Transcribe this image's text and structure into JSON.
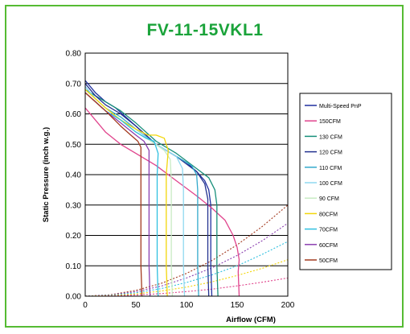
{
  "chart_data": {
    "type": "line",
    "title": "FV-11-15VKL1",
    "xlabel": "Airflow (CFM)",
    "ylabel": "Static Pressure (inch w.g.)",
    "xlim": [
      0,
      200
    ],
    "ylim": [
      0,
      0.8
    ],
    "x_ticks": [
      "0",
      "50",
      "100",
      "150",
      "200"
    ],
    "y_ticks": [
      "0.00",
      "0.10",
      "0.20",
      "0.30",
      "0.40",
      "0.50",
      "0.60",
      "0.70",
      "0.80"
    ],
    "grid": "horizontal",
    "legend_position": "right",
    "series": [
      {
        "name": "Multi-Speed PnP",
        "color": "#1f2f9f",
        "style": "solid",
        "points": [
          [
            0,
            0.71
          ],
          [
            10,
            0.67
          ],
          [
            20,
            0.64
          ],
          [
            30,
            0.62
          ],
          [
            40,
            0.59
          ],
          [
            50,
            0.56
          ],
          [
            60,
            0.53
          ],
          [
            70,
            0.5
          ],
          [
            80,
            0.48
          ],
          [
            90,
            0.46
          ],
          [
            100,
            0.44
          ],
          [
            110,
            0.41
          ],
          [
            118,
            0.38
          ],
          [
            122,
            0.35
          ],
          [
            124,
            0.3
          ],
          [
            124,
            0.2
          ],
          [
            124,
            0.1
          ],
          [
            125,
            0.0
          ]
        ]
      },
      {
        "name": "150CFM",
        "color": "#e0438c",
        "style": "solid",
        "points": [
          [
            0,
            0.62
          ],
          [
            10,
            0.58
          ],
          [
            20,
            0.54
          ],
          [
            35,
            0.5
          ],
          [
            50,
            0.47
          ],
          [
            70,
            0.43
          ],
          [
            90,
            0.38
          ],
          [
            110,
            0.33
          ],
          [
            125,
            0.29
          ],
          [
            138,
            0.25
          ],
          [
            146,
            0.2
          ],
          [
            150,
            0.16
          ],
          [
            152,
            0.12
          ],
          [
            151,
            0.08
          ],
          [
            152,
            0.0
          ]
        ]
      },
      {
        "name": "130 CFM",
        "color": "#178f7a",
        "style": "solid",
        "points": [
          [
            0,
            0.68
          ],
          [
            10,
            0.66
          ],
          [
            20,
            0.64
          ],
          [
            35,
            0.61
          ],
          [
            50,
            0.57
          ],
          [
            70,
            0.51
          ],
          [
            90,
            0.47
          ],
          [
            110,
            0.42
          ],
          [
            122,
            0.39
          ],
          [
            128,
            0.35
          ],
          [
            130,
            0.3
          ],
          [
            130,
            0.2
          ],
          [
            130,
            0.1
          ],
          [
            131,
            0.0
          ]
        ]
      },
      {
        "name": "120 CFM",
        "color": "#22328f",
        "style": "solid",
        "points": [
          [
            0,
            0.7
          ],
          [
            10,
            0.66
          ],
          [
            20,
            0.63
          ],
          [
            35,
            0.6
          ],
          [
            50,
            0.56
          ],
          [
            70,
            0.5
          ],
          [
            90,
            0.46
          ],
          [
            110,
            0.41
          ],
          [
            118,
            0.37
          ],
          [
            121,
            0.32
          ],
          [
            121,
            0.2
          ],
          [
            121,
            0.1
          ],
          [
            122,
            0.0
          ]
        ]
      },
      {
        "name": "110 CFM",
        "color": "#33aacc",
        "style": "solid",
        "points": [
          [
            0,
            0.69
          ],
          [
            10,
            0.65
          ],
          [
            20,
            0.62
          ],
          [
            35,
            0.59
          ],
          [
            50,
            0.55
          ],
          [
            70,
            0.5
          ],
          [
            90,
            0.46
          ],
          [
            105,
            0.43
          ],
          [
            110,
            0.4
          ],
          [
            111,
            0.35
          ],
          [
            111,
            0.2
          ],
          [
            111,
            0.1
          ],
          [
            112,
            0.0
          ]
        ]
      },
      {
        "name": "100 CFM",
        "color": "#8fd8f0",
        "style": "solid",
        "points": [
          [
            0,
            0.69
          ],
          [
            10,
            0.65
          ],
          [
            20,
            0.62
          ],
          [
            35,
            0.58
          ],
          [
            50,
            0.55
          ],
          [
            65,
            0.51
          ],
          [
            80,
            0.48
          ],
          [
            90,
            0.46
          ],
          [
            96,
            0.42
          ],
          [
            97,
            0.35
          ],
          [
            97,
            0.2
          ],
          [
            97,
            0.1
          ],
          [
            98,
            0.0
          ]
        ]
      },
      {
        "name": "90 CFM",
        "color": "#c8ebc4",
        "style": "solid",
        "points": [
          [
            0,
            0.68
          ],
          [
            10,
            0.65
          ],
          [
            20,
            0.62
          ],
          [
            35,
            0.58
          ],
          [
            50,
            0.54
          ],
          [
            65,
            0.51
          ],
          [
            78,
            0.48
          ],
          [
            84,
            0.45
          ],
          [
            85,
            0.38
          ],
          [
            85,
            0.2
          ],
          [
            85,
            0.1
          ],
          [
            86,
            0.0
          ]
        ]
      },
      {
        "name": "80CFM",
        "color": "#f2d60a",
        "style": "solid",
        "points": [
          [
            0,
            0.68
          ],
          [
            10,
            0.65
          ],
          [
            20,
            0.62
          ],
          [
            35,
            0.58
          ],
          [
            50,
            0.55
          ],
          [
            62,
            0.53
          ],
          [
            70,
            0.53
          ],
          [
            78,
            0.52
          ],
          [
            82,
            0.48
          ],
          [
            80,
            0.4
          ],
          [
            80,
            0.2
          ],
          [
            80,
            0.1
          ],
          [
            81,
            0.0
          ]
        ]
      },
      {
        "name": "70CFM",
        "color": "#30c0e0",
        "style": "solid",
        "points": [
          [
            0,
            0.67
          ],
          [
            10,
            0.64
          ],
          [
            20,
            0.61
          ],
          [
            35,
            0.58
          ],
          [
            50,
            0.54
          ],
          [
            60,
            0.52
          ],
          [
            68,
            0.51
          ],
          [
            72,
            0.47
          ],
          [
            71,
            0.4
          ],
          [
            71,
            0.2
          ],
          [
            71,
            0.1
          ],
          [
            72,
            0.0
          ]
        ]
      },
      {
        "name": "60CFM",
        "color": "#8a3fb0",
        "style": "solid",
        "points": [
          [
            0,
            0.67
          ],
          [
            10,
            0.64
          ],
          [
            20,
            0.61
          ],
          [
            35,
            0.57
          ],
          [
            50,
            0.53
          ],
          [
            58,
            0.51
          ],
          [
            63,
            0.48
          ],
          [
            63,
            0.4
          ],
          [
            63,
            0.2
          ],
          [
            63,
            0.1
          ],
          [
            64,
            0.0
          ]
        ]
      },
      {
        "name": "50CFM",
        "color": "#a33a1f",
        "style": "solid",
        "points": [
          [
            0,
            0.67
          ],
          [
            10,
            0.64
          ],
          [
            20,
            0.61
          ],
          [
            35,
            0.56
          ],
          [
            45,
            0.53
          ],
          [
            52,
            0.51
          ],
          [
            55,
            0.49
          ],
          [
            55,
            0.45
          ],
          [
            55,
            0.35
          ],
          [
            55,
            0.2
          ],
          [
            55,
            0.1
          ],
          [
            56,
            0.0
          ]
        ]
      }
    ],
    "curves": [
      {
        "color": "#a33a1f",
        "style": "dotted",
        "points": [
          [
            0,
            0
          ],
          [
            25,
            0.0047
          ],
          [
            50,
            0.019
          ],
          [
            75,
            0.042
          ],
          [
            100,
            0.075
          ],
          [
            125,
            0.117
          ],
          [
            150,
            0.169
          ],
          [
            175,
            0.23
          ],
          [
            200,
            0.3
          ]
        ]
      },
      {
        "color": "#8a3fb0",
        "style": "dotted",
        "points": [
          [
            0,
            0
          ],
          [
            25,
            0.0037
          ],
          [
            50,
            0.015
          ],
          [
            75,
            0.033
          ],
          [
            100,
            0.06
          ],
          [
            125,
            0.093
          ],
          [
            150,
            0.134
          ],
          [
            175,
            0.183
          ],
          [
            200,
            0.24
          ]
        ]
      },
      {
        "color": "#30c0e0",
        "style": "dotted",
        "points": [
          [
            0,
            0
          ],
          [
            25,
            0.0028
          ],
          [
            50,
            0.011
          ],
          [
            75,
            0.025
          ],
          [
            100,
            0.045
          ],
          [
            125,
            0.07
          ],
          [
            150,
            0.1
          ],
          [
            175,
            0.138
          ],
          [
            200,
            0.18
          ]
        ]
      },
      {
        "color": "#f2d60a",
        "style": "dotted",
        "points": [
          [
            0,
            0
          ],
          [
            25,
            0.0019
          ],
          [
            50,
            0.0075
          ],
          [
            75,
            0.017
          ],
          [
            100,
            0.03
          ],
          [
            125,
            0.047
          ],
          [
            150,
            0.068
          ],
          [
            175,
            0.092
          ],
          [
            200,
            0.12
          ]
        ]
      },
      {
        "color": "#e0438c",
        "style": "dotted",
        "points": [
          [
            0,
            0
          ],
          [
            25,
            0.0009
          ],
          [
            50,
            0.0037
          ],
          [
            75,
            0.0084
          ],
          [
            100,
            0.015
          ],
          [
            125,
            0.023
          ],
          [
            150,
            0.034
          ],
          [
            175,
            0.046
          ],
          [
            200,
            0.06
          ]
        ]
      }
    ]
  }
}
